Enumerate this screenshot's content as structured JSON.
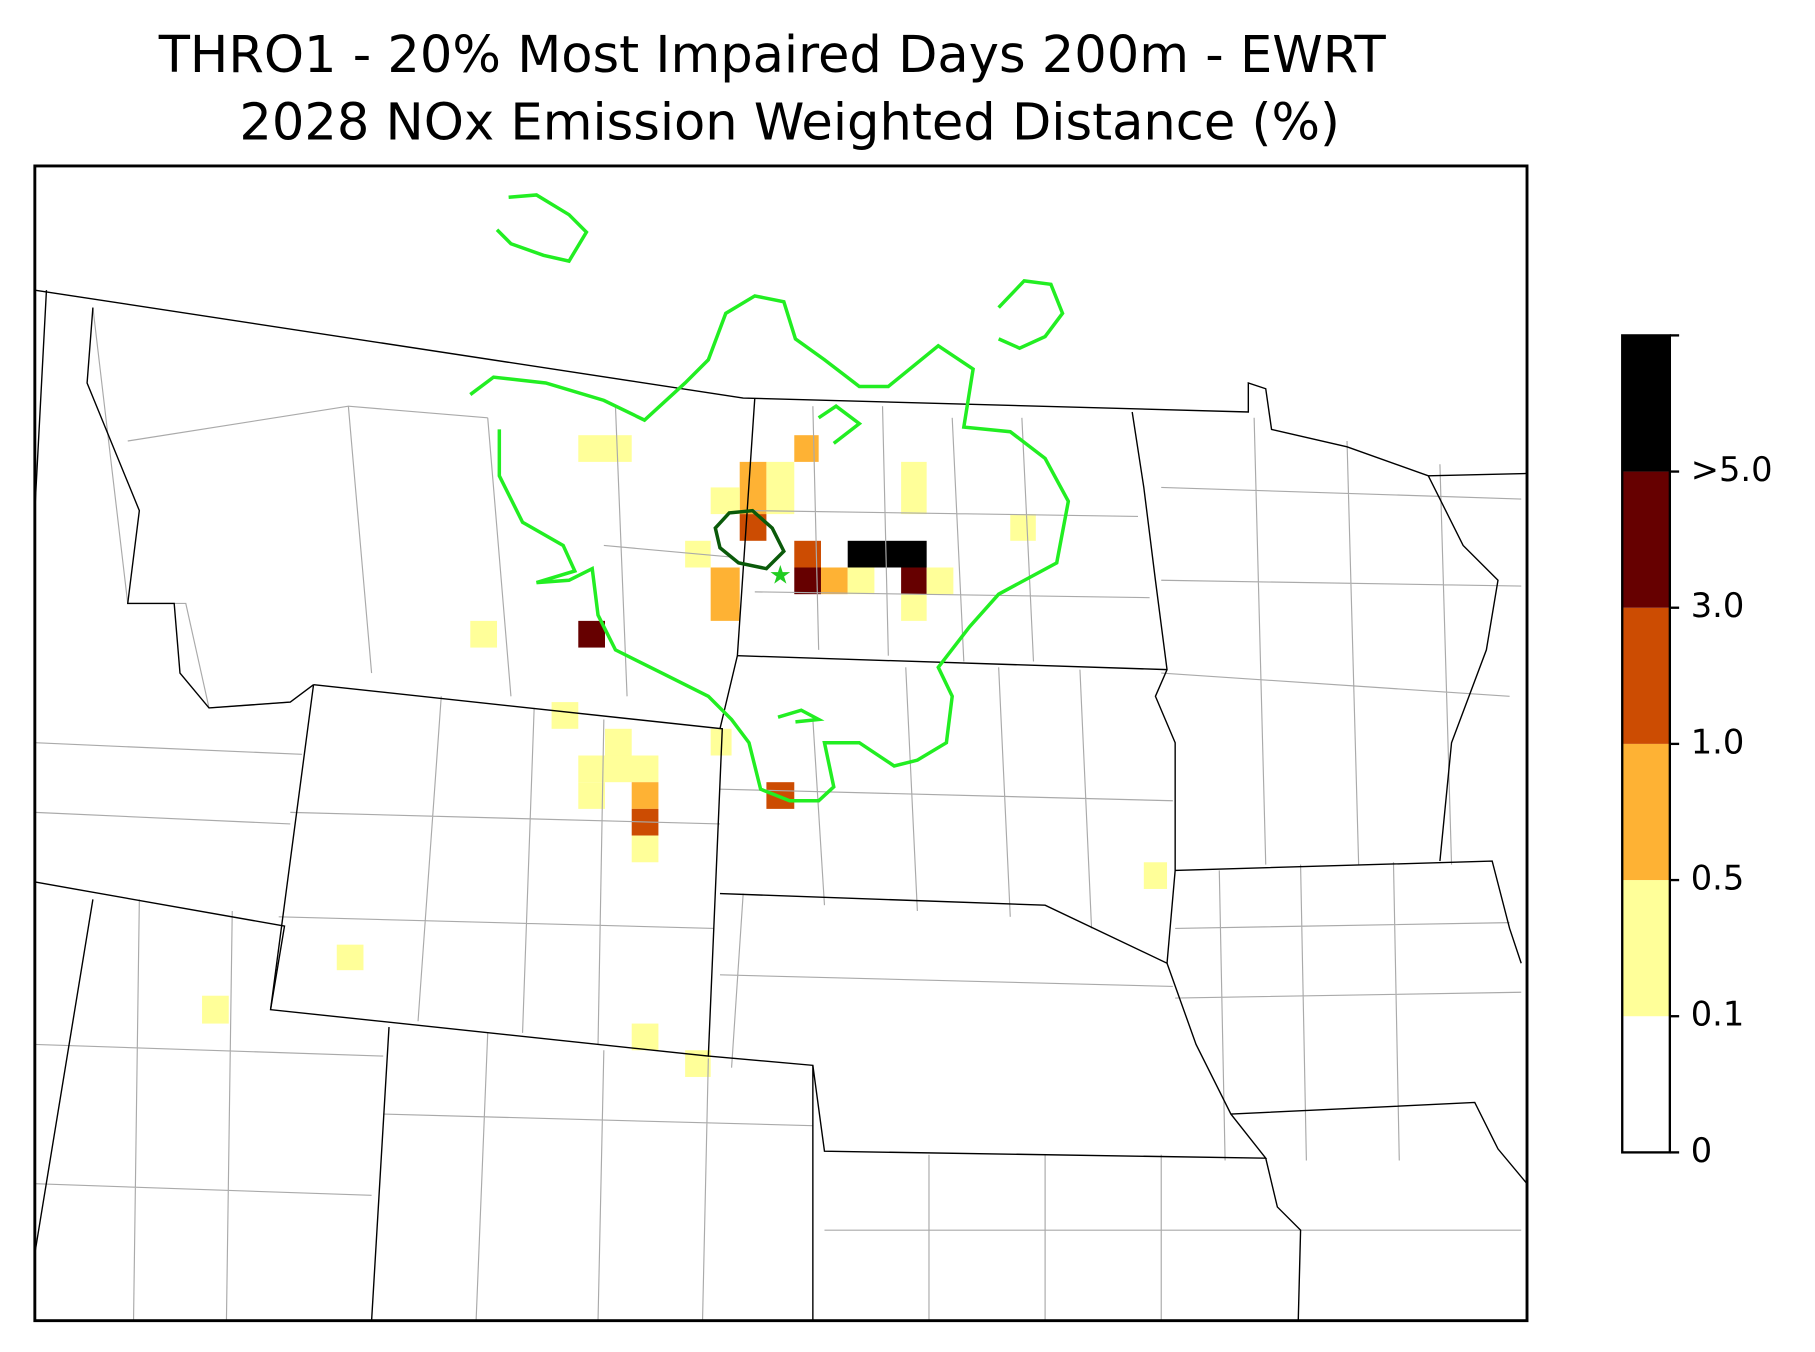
{
  "header": {
    "title": [
      "THRO1 - 20% Most Impaired Days 200m - EWRT",
      "2028 NOx Emission Weighted Distance (%)"
    ]
  },
  "colorbar": {
    "colors": [
      "#ffffff",
      "#ffff99",
      "#feb234",
      "#cc4c02",
      "#660000",
      "#000000"
    ],
    "ticks": [
      0,
      0.1,
      0.5,
      {
        "value": 1.0,
        "label": "1.0"
      },
      {
        "value": 3.0,
        "label": "3.0"
      },
      {
        "value": 5.0,
        "label": ">5.0"
      }
    ]
  }
}
